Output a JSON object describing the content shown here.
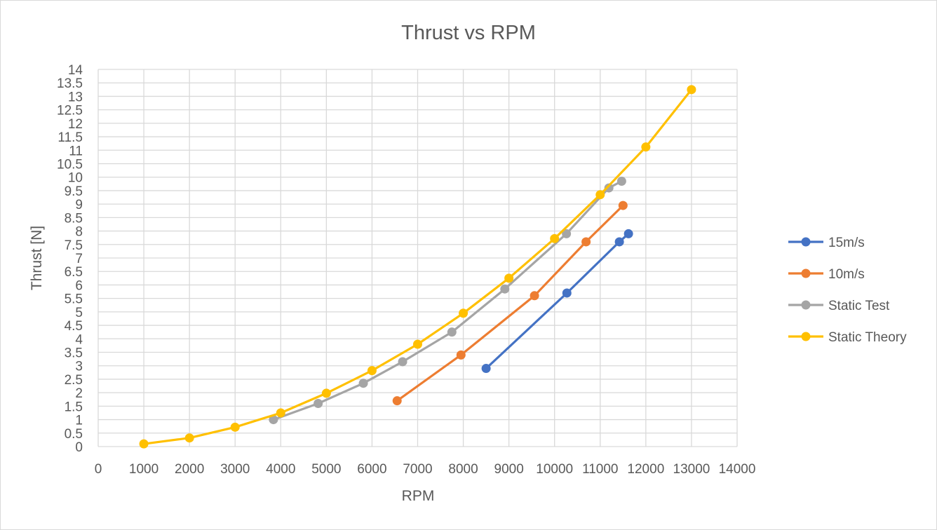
{
  "chart_data": {
    "type": "line",
    "title": "Thrust vs RPM",
    "xlabel": "RPM",
    "ylabel": "Thrust [N]",
    "xlim": [
      0,
      14000
    ],
    "ylim": [
      0,
      14
    ],
    "xticks": [
      0,
      1000,
      2000,
      3000,
      4000,
      5000,
      6000,
      7000,
      8000,
      9000,
      10000,
      11000,
      12000,
      13000,
      14000
    ],
    "yticks": [
      0,
      0.5,
      1,
      1.5,
      2,
      2.5,
      3,
      3.5,
      4,
      4.5,
      5,
      5.5,
      6,
      6.5,
      7,
      7.5,
      8,
      8.5,
      9,
      9.5,
      10,
      10.5,
      11,
      11.5,
      12,
      12.5,
      13,
      13.5,
      14
    ],
    "grid": true,
    "legend_position": "right",
    "series": [
      {
        "name": "15m/s",
        "color": "#4472C4",
        "points": [
          [
            8500,
            2.9
          ],
          [
            10270,
            5.7
          ],
          [
            11420,
            7.6
          ],
          [
            11620,
            7.9
          ]
        ]
      },
      {
        "name": "10m/s",
        "color": "#ED7D31",
        "points": [
          [
            6550,
            1.7
          ],
          [
            7950,
            3.4
          ],
          [
            9560,
            5.6
          ],
          [
            10690,
            7.6
          ],
          [
            11500,
            8.95
          ]
        ]
      },
      {
        "name": "Static Test",
        "color": "#A5A5A5",
        "points": [
          [
            3840,
            1.0
          ],
          [
            4820,
            1.6
          ],
          [
            5810,
            2.35
          ],
          [
            6670,
            3.15
          ],
          [
            7750,
            4.25
          ],
          [
            8910,
            5.85
          ],
          [
            10260,
            7.9
          ],
          [
            11190,
            9.6
          ],
          [
            11470,
            9.85
          ]
        ]
      },
      {
        "name": "Static Theory",
        "color": "#FFC000",
        "points": [
          [
            1000,
            0.1
          ],
          [
            2000,
            0.32
          ],
          [
            3000,
            0.72
          ],
          [
            4000,
            1.25
          ],
          [
            5000,
            1.98
          ],
          [
            6000,
            2.82
          ],
          [
            7000,
            3.8
          ],
          [
            8000,
            4.95
          ],
          [
            9000,
            6.25
          ],
          [
            10000,
            7.72
          ],
          [
            11000,
            9.35
          ],
          [
            12000,
            11.12
          ],
          [
            13000,
            13.25
          ]
        ]
      }
    ]
  }
}
